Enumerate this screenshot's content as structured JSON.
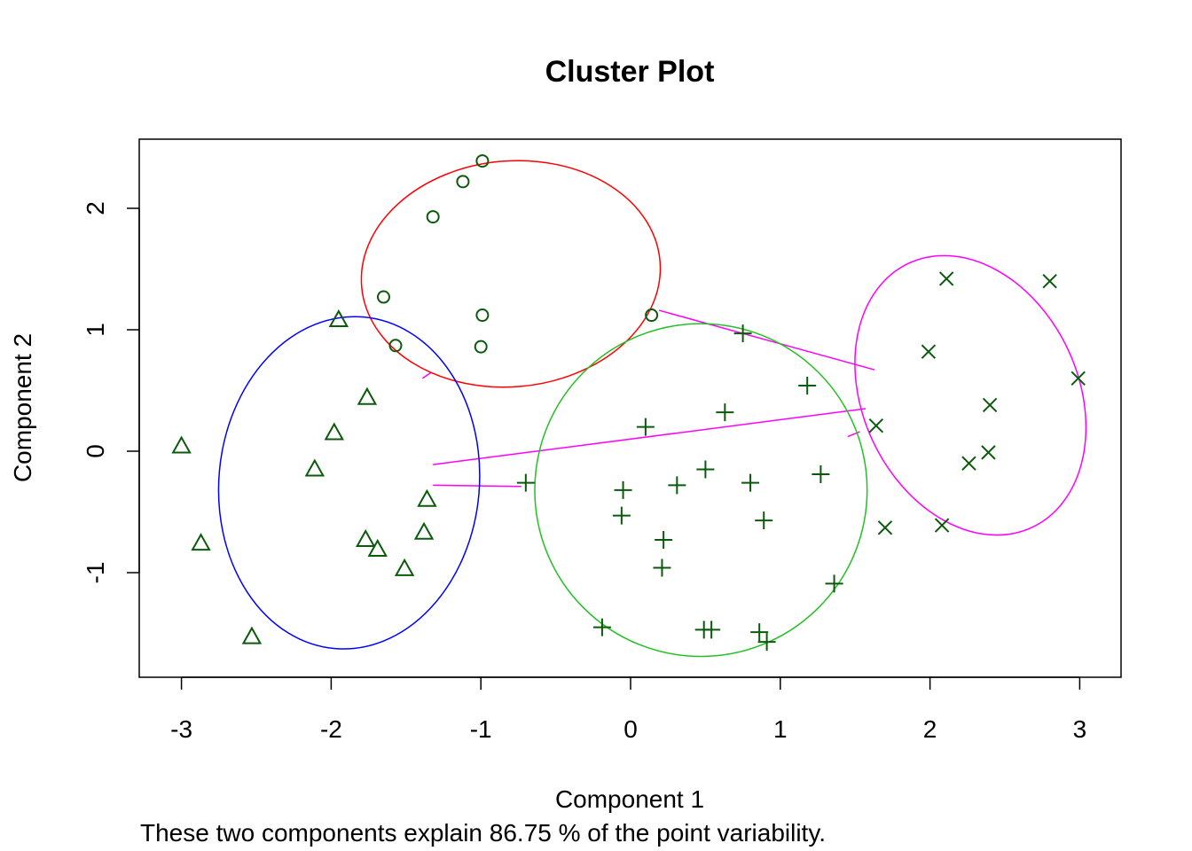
{
  "chart_data": {
    "type": "scatter",
    "title": "Cluster Plot",
    "xlabel": "Component 1",
    "ylabel": "Component 2",
    "subtitle": "These two components explain 86.75 % of the point variability.",
    "xlim": [
      -3.3,
      3.3
    ],
    "ylim": [
      -1.85,
      2.55
    ],
    "xticks": [
      -3,
      -2,
      -1,
      0,
      1,
      2,
      3
    ],
    "yticks": [
      -1,
      0,
      1,
      2
    ],
    "grid": false,
    "point_color": "#0b5a0b",
    "clusters": [
      {
        "id": 1,
        "marker": "circle",
        "ellipse_color": "#ff0000",
        "points": [
          [
            -0.99,
            2.39
          ],
          [
            -1.12,
            2.22
          ],
          [
            -1.32,
            1.93
          ],
          [
            -1.65,
            1.27
          ],
          [
            -0.99,
            1.12
          ],
          [
            0.14,
            1.12
          ],
          [
            -1.57,
            0.87
          ],
          [
            -1.0,
            0.86
          ]
        ],
        "ellipse": {
          "center": [
            -0.8,
            1.46
          ],
          "rx": 1.0,
          "ry": 0.93,
          "angle": 5
        }
      },
      {
        "id": 2,
        "marker": "triangle",
        "ellipse_color": "#0000ff",
        "points": [
          [
            -1.95,
            1.08
          ],
          [
            -1.76,
            0.44
          ],
          [
            -1.98,
            0.15
          ],
          [
            -2.11,
            -0.15
          ],
          [
            -3.0,
            0.04
          ],
          [
            -2.87,
            -0.76
          ],
          [
            -1.77,
            -0.73
          ],
          [
            -1.69,
            -0.81
          ],
          [
            -1.36,
            -0.4
          ],
          [
            -1.38,
            -0.67
          ],
          [
            -1.51,
            -0.97
          ],
          [
            -2.53,
            -1.53
          ]
        ],
        "ellipse": {
          "center": [
            -1.88,
            -0.26
          ],
          "rx": 0.87,
          "ry": 1.37,
          "angle": -5
        }
      },
      {
        "id": 3,
        "marker": "plus",
        "ellipse_color": "#22c022",
        "points": [
          [
            0.75,
            0.97
          ],
          [
            1.18,
            0.54
          ],
          [
            0.63,
            0.32
          ],
          [
            0.1,
            0.2
          ],
          [
            -0.7,
            -0.26
          ],
          [
            0.5,
            -0.15
          ],
          [
            1.27,
            -0.19
          ],
          [
            -0.05,
            -0.32
          ],
          [
            0.31,
            -0.28
          ],
          [
            0.8,
            -0.26
          ],
          [
            -0.06,
            -0.53
          ],
          [
            0.22,
            -0.73
          ],
          [
            0.89,
            -0.57
          ],
          [
            0.21,
            -0.96
          ],
          [
            1.36,
            -1.09
          ],
          [
            -0.19,
            -1.45
          ],
          [
            0.49,
            -1.47
          ],
          [
            0.54,
            -1.47
          ],
          [
            0.86,
            -1.49
          ],
          [
            0.91,
            -1.57
          ]
        ],
        "ellipse": {
          "center": [
            0.47,
            -0.32
          ],
          "rx": 1.11,
          "ry": 1.37,
          "angle": 0
        }
      },
      {
        "id": 4,
        "marker": "cross",
        "ellipse_color": "#ff00ff",
        "points": [
          [
            2.11,
            1.42
          ],
          [
            2.8,
            1.4
          ],
          [
            1.99,
            0.82
          ],
          [
            2.99,
            0.6
          ],
          [
            2.4,
            0.38
          ],
          [
            1.64,
            0.21
          ],
          [
            2.26,
            -0.1
          ],
          [
            2.39,
            -0.01
          ],
          [
            1.7,
            -0.63
          ],
          [
            2.08,
            -0.61
          ]
        ],
        "ellipse": {
          "center": [
            2.27,
            0.46
          ],
          "rx": 0.72,
          "ry": 1.2,
          "angle": 25
        }
      }
    ],
    "connectors": [
      {
        "from": [
          0.19,
          1.16
        ],
        "to": [
          1.63,
          0.67
        ]
      },
      {
        "from": [
          -1.33,
          0.65
        ],
        "to": [
          -1.39,
          0.6
        ]
      },
      {
        "from": [
          -1.32,
          -0.11
        ],
        "to": [
          1.57,
          0.35
        ]
      },
      {
        "from": [
          -1.32,
          -0.28
        ],
        "to": [
          -0.73,
          -0.29
        ]
      },
      {
        "from": [
          1.45,
          0.12
        ],
        "to": [
          1.53,
          0.16
        ]
      }
    ]
  }
}
